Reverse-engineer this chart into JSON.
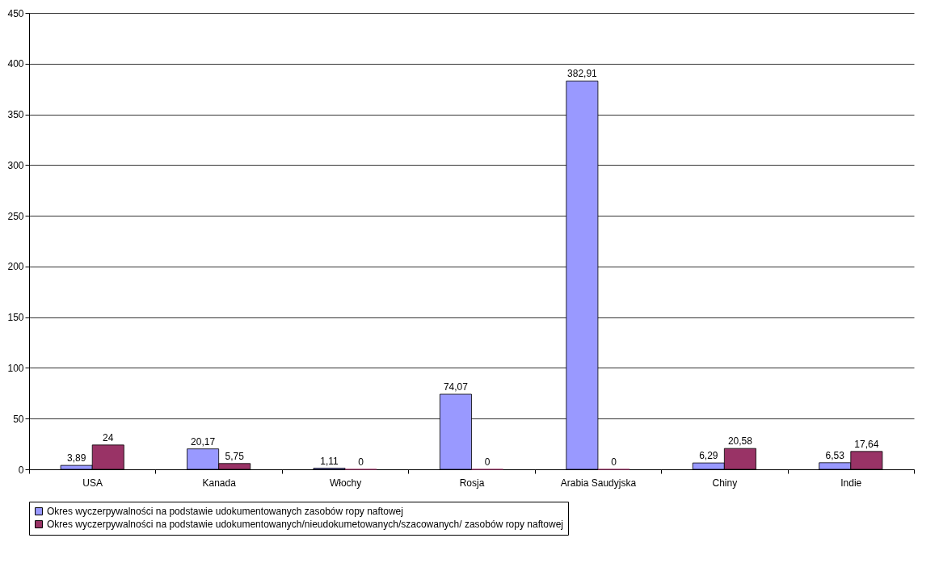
{
  "chart_data": {
    "type": "bar",
    "categories": [
      "USA",
      "Kanada",
      "Włochy",
      "Rosja",
      "Arabia Saudyjska",
      "Chiny",
      "Indie"
    ],
    "series": [
      {
        "name": "Okres wyczerpywalności na podstawie udokumentowanych zasobów ropy naftowej",
        "color": "#9999ff",
        "values": [
          3.89,
          20.17,
          1.11,
          74.07,
          382.91,
          6.29,
          6.53
        ],
        "value_labels": [
          "3,89",
          "20,17",
          "1,11",
          "74,07",
          "382,91",
          "6,29",
          "6,53"
        ]
      },
      {
        "name": "Okres wyczerpywalności na podstawie udokumentowanych/nieudokumetowanych/szacowanych/ zasobów ropy naftowej",
        "color": "#993366",
        "values": [
          24,
          5.75,
          0,
          0,
          0,
          20.58,
          17.64
        ],
        "value_labels": [
          "24",
          "5,75",
          "0",
          "0",
          "0",
          "20,58",
          "17,64"
        ]
      }
    ],
    "ylim": [
      0,
      450
    ],
    "yticks": [
      0,
      50,
      100,
      150,
      200,
      250,
      300,
      350,
      400,
      450
    ],
    "grid": "y",
    "legend": "bottom"
  }
}
